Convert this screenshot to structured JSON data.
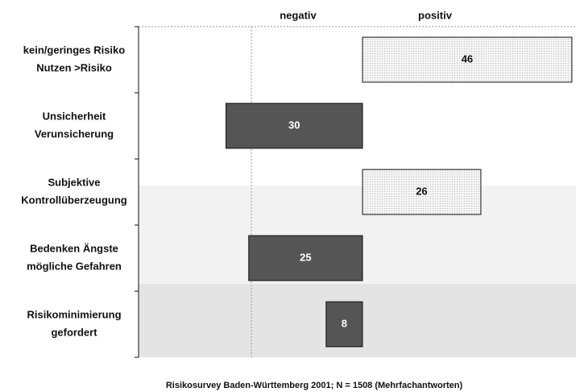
{
  "chart_data": {
    "type": "diverging-bar",
    "categories": [
      [
        "kein/geringes Risiko",
        "Nutzen >Risiko"
      ],
      [
        "Unsicherheit",
        "Verunsicherung"
      ],
      [
        "Subjektive",
        "Kontrollüberzeugung"
      ],
      [
        "Bedenken Ängste",
        "mögliche Gefahren"
      ],
      [
        "Risikominimierung",
        "gefordert"
      ]
    ],
    "series": [
      {
        "name": "negativ",
        "color": "#555555",
        "values": [
          null,
          30,
          null,
          25,
          8
        ]
      },
      {
        "name": "positiv",
        "color": "#e8e8e8",
        "values": [
          46,
          null,
          26,
          null,
          null
        ]
      }
    ],
    "footnote": "Risikosurvey Baden-Württemberg 2001;  N = 1508  (Mehrfachantworten)"
  }
}
